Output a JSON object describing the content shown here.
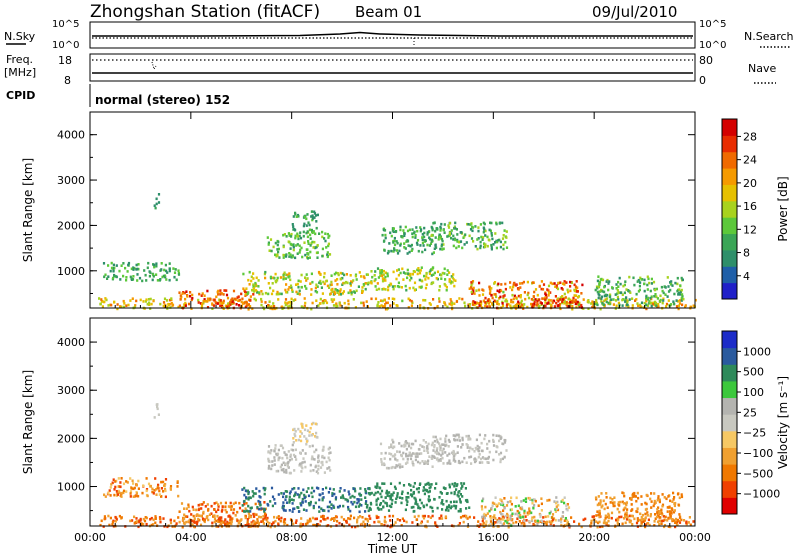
{
  "header": {
    "title": "Zhongshan Station (fitACF)",
    "beam": "Beam 01",
    "date": "09/Jul/2010"
  },
  "top_panels": {
    "nsky_label": "N.Sky",
    "nsky_ticks": [
      "10^5",
      "10^0"
    ],
    "nsearch_label": "N.Search",
    "nsearch_ticks": [
      "10^5",
      "10^0"
    ],
    "freq_label": "Freq.",
    "freq_unit": "[MHz]",
    "freq_ticks": [
      "18",
      "8"
    ],
    "nave_label": "Nave",
    "nave_ticks": [
      "80",
      "0"
    ],
    "cpid_label": "CPID",
    "cpid_text": "normal (stereo) 152"
  },
  "colors": {
    "power": [
      "#2020c8",
      "#1f5fa8",
      "#2e8f6a",
      "#3aa556",
      "#5cc83a",
      "#a8d21e",
      "#e6c000",
      "#f59a00",
      "#f06a00",
      "#e82c00",
      "#d40000"
    ],
    "velocity": [
      "#e00000",
      "#f04000",
      "#f07800",
      "#f0a030",
      "#f6c864",
      "#c8c8c0",
      "#b4b4b0",
      "#3cc83c",
      "#2e8a5a",
      "#2a5a9e",
      "#1c2cc8"
    ]
  },
  "chart_data": [
    {
      "type": "heatmap",
      "name": "power",
      "ylabel": "Slant Range [km]",
      "xlabel": "",
      "yticks": [
        1000,
        2000,
        3000,
        4000
      ],
      "ylim": [
        180,
        4500
      ],
      "xticks": [
        "00:00",
        "04:00",
        "08:00",
        "12:00",
        "16:00",
        "20:00",
        "00:00"
      ],
      "xlim": [
        0,
        24
      ],
      "colorbar": {
        "label": "Power [dB]",
        "ticks": [
          "4",
          "8",
          "12",
          "16",
          "20",
          "24",
          "28"
        ],
        "range": [
          0,
          31
        ]
      },
      "clusters": [
        {
          "t": [
            0.3,
            24
          ],
          "r": [
            180,
            420
          ],
          "v": [
            14,
            24
          ]
        },
        {
          "t": [
            0.5,
            3.5
          ],
          "r": [
            800,
            1200
          ],
          "v": [
            6,
            14
          ]
        },
        {
          "t": [
            2.5,
            2.7
          ],
          "r": [
            2400,
            2750
          ],
          "v": [
            6,
            10
          ]
        },
        {
          "t": [
            3.5,
            6.5
          ],
          "r": [
            200,
            600
          ],
          "v": [
            20,
            30
          ]
        },
        {
          "t": [
            6,
            11
          ],
          "r": [
            500,
            1000
          ],
          "v": [
            10,
            22
          ]
        },
        {
          "t": [
            7,
            9.5
          ],
          "r": [
            1300,
            1900
          ],
          "v": [
            8,
            16
          ]
        },
        {
          "t": [
            8,
            9
          ],
          "r": [
            1900,
            2350
          ],
          "v": [
            6,
            12
          ]
        },
        {
          "t": [
            11,
            14.5
          ],
          "r": [
            600,
            1100
          ],
          "v": [
            10,
            20
          ]
        },
        {
          "t": [
            11.5,
            14
          ],
          "r": [
            1400,
            2000
          ],
          "v": [
            6,
            14
          ]
        },
        {
          "t": [
            13.5,
            16.5
          ],
          "r": [
            1500,
            2100
          ],
          "v": [
            6,
            16
          ]
        },
        {
          "t": [
            15,
            19.5
          ],
          "r": [
            200,
            800
          ],
          "v": [
            14,
            30
          ]
        },
        {
          "t": [
            17.5,
            19.5
          ],
          "r": [
            200,
            400
          ],
          "v": [
            24,
            30
          ]
        },
        {
          "t": [
            20,
            23.5
          ],
          "r": [
            250,
            900
          ],
          "v": [
            6,
            16
          ]
        }
      ]
    },
    {
      "type": "heatmap",
      "name": "velocity",
      "ylabel": "Slant Range [km]",
      "xlabel": "Time UT",
      "yticks": [
        1000,
        2000,
        3000,
        4000
      ],
      "ylim": [
        180,
        4500
      ],
      "xticks": [
        "00:00",
        "04:00",
        "08:00",
        "12:00",
        "16:00",
        "20:00",
        "00:00"
      ],
      "xlim": [
        0,
        24
      ],
      "colorbar": {
        "label": "Velocity [m s⁻¹]",
        "ticks": [
          "1000",
          "500",
          "100",
          "25",
          "−25",
          "−100",
          "−500",
          "−1000"
        ]
      },
      "clusters": [
        {
          "t": [
            0.3,
            24
          ],
          "r": [
            180,
            420
          ],
          "c": [
            1,
            3
          ]
        },
        {
          "t": [
            0.5,
            3.5
          ],
          "r": [
            800,
            1200
          ],
          "c": [
            1,
            4
          ]
        },
        {
          "t": [
            2.5,
            2.7
          ],
          "r": [
            2400,
            2750
          ],
          "c": [
            5,
            5
          ]
        },
        {
          "t": [
            3.5,
            7
          ],
          "r": [
            200,
            700
          ],
          "c": [
            1,
            3
          ]
        },
        {
          "t": [
            6,
            11
          ],
          "r": [
            500,
            1000
          ],
          "c": [
            8,
            9
          ]
        },
        {
          "t": [
            7,
            9.5
          ],
          "r": [
            1300,
            1900
          ],
          "c": [
            5,
            6
          ]
        },
        {
          "t": [
            8,
            9
          ],
          "r": [
            1900,
            2350
          ],
          "c": [
            4,
            5
          ]
        },
        {
          "t": [
            11,
            15
          ],
          "r": [
            500,
            1100
          ],
          "c": [
            8,
            8
          ]
        },
        {
          "t": [
            11.5,
            14
          ],
          "r": [
            1400,
            2000
          ],
          "c": [
            5,
            6
          ]
        },
        {
          "t": [
            13.5,
            16.5
          ],
          "r": [
            1500,
            2100
          ],
          "c": [
            5,
            6
          ]
        },
        {
          "t": [
            15.5,
            19
          ],
          "r": [
            200,
            800
          ],
          "c": [
            2,
            7
          ]
        },
        {
          "t": [
            20,
            23.5
          ],
          "r": [
            250,
            900
          ],
          "c": [
            2,
            3
          ]
        }
      ]
    }
  ]
}
